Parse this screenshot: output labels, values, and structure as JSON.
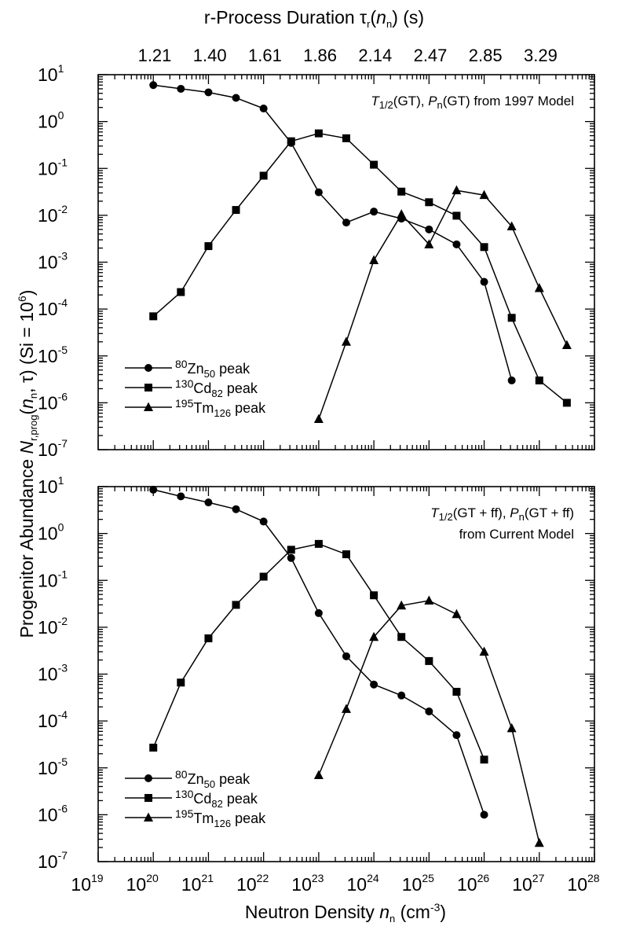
{
  "chart_data": [
    {
      "type": "line",
      "panel": "top",
      "annotation": {
        "t_sym": "T",
        "t_sub": "1/2",
        "t_arg": "(GT), ",
        "p_sym": "P",
        "p_sub": "n",
        "p_arg": "(GT) from 1997 Model"
      },
      "xscale": "log",
      "yscale": "log",
      "xlim": [
        1e+19,
        1e+28
      ],
      "ylim": [
        1e-07,
        10.0
      ],
      "series": [
        {
          "name": "80Zn50 peak",
          "marker": "circle",
          "x": [
            1e+20,
            3.16e+20,
            1e+21,
            3.16e+21,
            1e+22,
            3.16e+22,
            1e+23,
            3.16e+23,
            1e+24,
            3.16e+24,
            1e+25,
            3.16e+25,
            1e+26,
            3.16e+26
          ],
          "y": [
            6.0,
            5.0,
            4.2,
            3.2,
            1.9,
            0.35,
            0.031,
            0.007,
            0.012,
            0.0085,
            0.005,
            0.0024,
            0.00038,
            3e-06
          ]
        },
        {
          "name": "130Cd82 peak",
          "marker": "square",
          "x": [
            1e+20,
            3.16e+20,
            1e+21,
            3.16e+21,
            1e+22,
            3.16e+22,
            1e+23,
            3.16e+23,
            1e+24,
            3.16e+24,
            1e+25,
            3.16e+25,
            1e+26,
            3.16e+26,
            1e+27,
            3.16e+27
          ],
          "y": [
            7e-05,
            0.00023,
            0.0022,
            0.013,
            0.07,
            0.38,
            0.56,
            0.44,
            0.12,
            0.032,
            0.019,
            0.0098,
            0.0021,
            6.5e-05,
            3e-06,
            1e-06
          ]
        },
        {
          "name": "195Tm126 peak",
          "marker": "triangle",
          "x": [
            1e+23,
            3.16e+23,
            1e+24,
            3.16e+24,
            1e+25,
            3.16e+25,
            1e+26,
            3.16e+26,
            1e+27,
            3.16e+27
          ],
          "y": [
            4.5e-07,
            2e-05,
            0.0011,
            0.0105,
            0.0024,
            0.034,
            0.027,
            0.0058,
            0.00028,
            1.7e-05
          ]
        }
      ]
    },
    {
      "type": "line",
      "panel": "bottom",
      "annotation": {
        "t_sym": "T",
        "t_sub": "1/2",
        "t_arg": "(GT + ff), ",
        "p_sym": "P",
        "p_sub": "n",
        "p_arg": "(GT + ff)",
        "line2": "from Current Model"
      },
      "xscale": "log",
      "yscale": "log",
      "xlim": [
        1e+19,
        1e+28
      ],
      "ylim": [
        1e-07,
        10.0
      ],
      "series": [
        {
          "name": "80Zn50 peak",
          "marker": "circle",
          "x": [
            1e+20,
            3.16e+20,
            1e+21,
            3.16e+21,
            1e+22,
            3.16e+22,
            1e+23,
            3.16e+23,
            1e+24,
            3.16e+24,
            1e+25,
            3.16e+25,
            1e+26
          ],
          "y": [
            8.6,
            6.2,
            4.6,
            3.3,
            1.8,
            0.3,
            0.02,
            0.0024,
            0.0006,
            0.00035,
            0.00016,
            5e-05,
            1e-06
          ]
        },
        {
          "name": "130Cd82 peak",
          "marker": "square",
          "x": [
            1e+20,
            3.16e+20,
            1e+21,
            3.16e+21,
            1e+22,
            3.16e+22,
            1e+23,
            3.16e+23,
            1e+24,
            3.16e+24,
            1e+25,
            3.16e+25,
            1e+26
          ],
          "y": [
            2.7e-05,
            0.00066,
            0.0058,
            0.03,
            0.12,
            0.45,
            0.6,
            0.36,
            0.048,
            0.0062,
            0.0019,
            0.00042,
            1.5e-05
          ]
        },
        {
          "name": "195Tm126 peak",
          "marker": "triangle",
          "x": [
            1e+23,
            3.16e+23,
            1e+24,
            3.16e+24,
            1e+25,
            3.16e+25,
            1e+26,
            3.16e+26,
            1e+27
          ],
          "y": [
            7e-06,
            0.00018,
            0.0062,
            0.029,
            0.037,
            0.019,
            0.003,
            7e-05,
            2.5e-07
          ]
        }
      ]
    }
  ],
  "labels": {
    "top_axis_title": "r-Process Duration ",
    "tau": "τ",
    "tau_sub": "r",
    "tau_open": "(",
    "tau_n": "n",
    "tau_nsub": "n",
    "tau_close": ") (s)",
    "top_ticks": [
      "1.21",
      "1.40",
      "1.61",
      "1.86",
      "2.14",
      "2.47",
      "2.85",
      "3.29"
    ],
    "x_title_main": "Neutron Density ",
    "x_title_n": "n",
    "x_title_nsub": "n",
    "x_title_unit": " (cm",
    "x_title_exp": "-3",
    "x_title_close": ")",
    "x_tick_base": "10",
    "x_tick_exps": [
      "19",
      "20",
      "21",
      "22",
      "23",
      "24",
      "25",
      "26",
      "27",
      "28"
    ],
    "y_tick_base": "10",
    "y_tick_exps": [
      "1",
      "0",
      "-1",
      "-2",
      "-3",
      "-4",
      "-5",
      "-6",
      "-7"
    ],
    "y_title_main": "Progenitor Abundance ",
    "y_title_N": "N",
    "y_title_Nsub": "r,prog",
    "y_title_arg": "(",
    "y_title_n": "n",
    "y_title_nsub": "n",
    "y_title_comma": ", τ)  (Si = 10",
    "y_title_exp": "6",
    "y_title_close": ")"
  },
  "legend": [
    {
      "mass": "80",
      "el": "Zn",
      "sub": "50",
      "word": " peak"
    },
    {
      "mass": "130",
      "el": "Cd",
      "sub": "82",
      "word": " peak"
    },
    {
      "mass": "195",
      "el": "Tm",
      "sub": "126",
      "word": " peak"
    }
  ]
}
